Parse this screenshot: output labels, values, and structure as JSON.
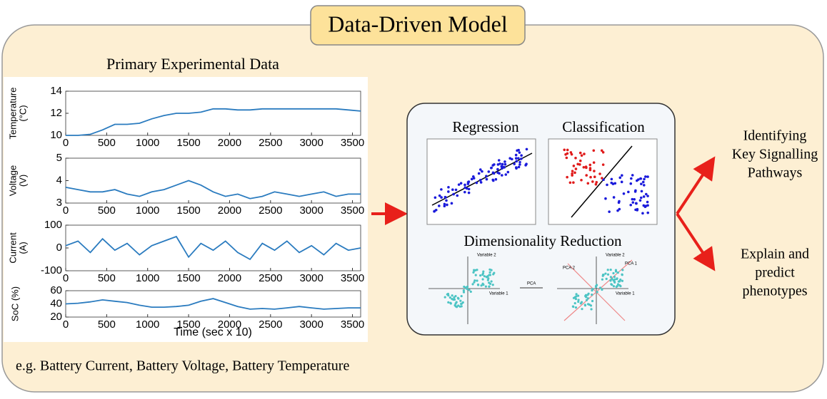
{
  "title": "Data-Driven Model",
  "left_title": "Primary Experimental Data",
  "footer": "e.g. Battery Current, Battery Voltage, Battery Temperature",
  "methods": {
    "regression": "Regression",
    "classification": "Classification",
    "dimensionality": "Dimensionality Reduction",
    "pca_arrow": "PCA",
    "variable1": "Variable 1",
    "variable2": "Variable 2",
    "pca1": "PCA 1",
    "pca2": "PCA 2"
  },
  "outputs": [
    [
      "Identifying",
      "Key Signalling",
      "Pathways"
    ],
    [
      "Explain and",
      "predict",
      "phenotypes"
    ]
  ],
  "plots": {
    "xlabel": "Time (sec x 10)",
    "charts": [
      {
        "type": "line",
        "ylabel": [
          "Temperature",
          "(°C)"
        ],
        "xlim": [
          0,
          3600
        ],
        "ylim": [
          10,
          14
        ],
        "yticks": [
          10,
          12,
          14
        ],
        "xticks": [
          0,
          500,
          1000,
          1500,
          2000,
          2500,
          3000,
          3500
        ],
        "x": [
          0,
          150,
          300,
          450,
          600,
          750,
          900,
          1050,
          1200,
          1350,
          1500,
          1650,
          1800,
          1950,
          2100,
          2250,
          2400,
          2550,
          2700,
          2850,
          3000,
          3150,
          3300,
          3450,
          3600
        ],
        "values": [
          10,
          10,
          10.1,
          10.5,
          11,
          11,
          11.1,
          11.5,
          11.8,
          12,
          12,
          12.1,
          12.4,
          12.4,
          12.3,
          12.3,
          12.4,
          12.4,
          12.4,
          12.4,
          12.4,
          12.4,
          12.4,
          12.3,
          12.2
        ],
        "color": "#2a7bbf"
      },
      {
        "type": "line",
        "ylabel": [
          "Voltage",
          "(V)"
        ],
        "xlim": [
          0,
          3600
        ],
        "ylim": [
          3,
          5
        ],
        "yticks": [
          3,
          4,
          5
        ],
        "xticks": [
          0,
          500,
          1000,
          1500,
          2000,
          2500,
          3000,
          3500
        ],
        "x": [
          0,
          150,
          300,
          450,
          600,
          750,
          900,
          1050,
          1200,
          1350,
          1500,
          1650,
          1800,
          1950,
          2100,
          2250,
          2400,
          2550,
          2700,
          2850,
          3000,
          3150,
          3300,
          3450,
          3600
        ],
        "values": [
          3.7,
          3.6,
          3.5,
          3.5,
          3.6,
          3.4,
          3.3,
          3.5,
          3.6,
          3.8,
          4.0,
          3.8,
          3.5,
          3.3,
          3.4,
          3.2,
          3.3,
          3.5,
          3.4,
          3.3,
          3.4,
          3.5,
          3.3,
          3.4,
          3.4
        ],
        "color": "#2a7bbf"
      },
      {
        "type": "line",
        "ylabel": [
          "Current",
          "(A)"
        ],
        "xlim": [
          0,
          3600
        ],
        "ylim": [
          -100,
          100
        ],
        "yticks": [
          -100,
          0,
          100
        ],
        "xticks": [
          0,
          500,
          1000,
          1500,
          2000,
          2500,
          3000,
          3500
        ],
        "x": [
          0,
          150,
          300,
          450,
          600,
          750,
          900,
          1050,
          1200,
          1350,
          1500,
          1650,
          1800,
          1950,
          2100,
          2250,
          2400,
          2550,
          2700,
          2850,
          3000,
          3150,
          3300,
          3450,
          3600
        ],
        "values": [
          10,
          30,
          -20,
          40,
          -10,
          20,
          -30,
          10,
          30,
          50,
          -40,
          20,
          -10,
          30,
          -20,
          -50,
          20,
          -10,
          30,
          -20,
          10,
          -30,
          20,
          -10,
          0
        ],
        "color": "#2a7bbf"
      },
      {
        "type": "line",
        "ylabel": [
          "SoC (%)"
        ],
        "xlim": [
          0,
          3600
        ],
        "ylim": [
          20,
          60
        ],
        "yticks": [
          20,
          40,
          60
        ],
        "xticks": [
          0,
          500,
          1000,
          1500,
          2000,
          2500,
          3000,
          3500
        ],
        "x": [
          0,
          150,
          300,
          450,
          600,
          750,
          900,
          1050,
          1200,
          1350,
          1500,
          1650,
          1800,
          1950,
          2100,
          2250,
          2400,
          2550,
          2700,
          2850,
          3000,
          3150,
          3300,
          3450,
          3600
        ],
        "values": [
          40,
          41,
          43,
          46,
          44,
          42,
          38,
          35,
          35,
          36,
          38,
          44,
          48,
          42,
          36,
          32,
          33,
          32,
          34,
          36,
          34,
          32,
          33,
          34,
          34
        ],
        "color": "#2a7bbf"
      }
    ]
  }
}
